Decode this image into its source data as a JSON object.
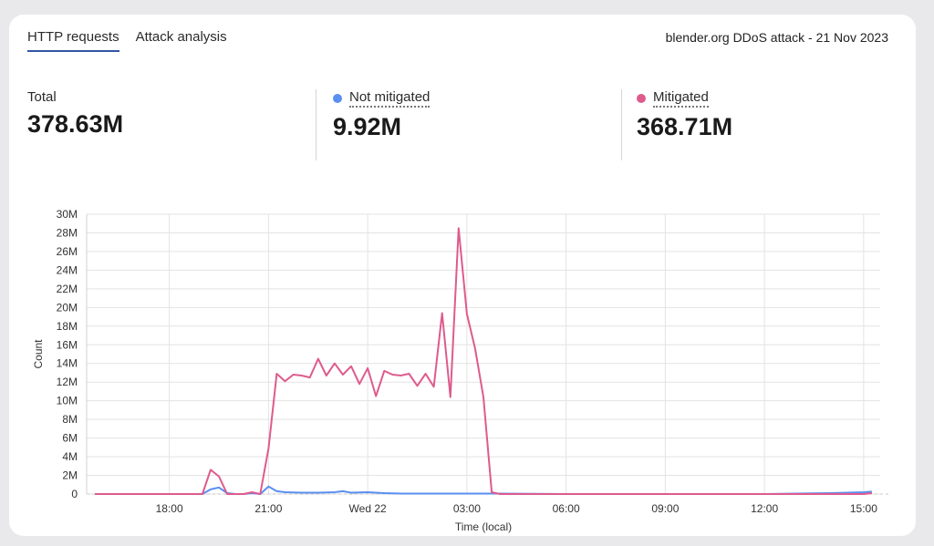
{
  "tabs": [
    {
      "label": "HTTP requests",
      "active": true
    },
    {
      "label": "Attack analysis",
      "active": false
    }
  ],
  "header": {
    "title": "blender.org DDoS attack - 21 Nov 2023"
  },
  "stats": {
    "total": {
      "label": "Total",
      "value": "378.63M"
    },
    "not_mitigated": {
      "label": "Not mitigated",
      "value": "9.92M",
      "color": "#5b8ff0"
    },
    "mitigated": {
      "label": "Mitigated",
      "value": "368.71M",
      "color": "#de5b8d"
    }
  },
  "chart_data": {
    "type": "line",
    "xlabel": "Time (local)",
    "ylabel": "Count",
    "ylim": [
      0,
      30
    ],
    "yticks": [
      0,
      2,
      4,
      6,
      8,
      10,
      12,
      14,
      16,
      18,
      20,
      22,
      24,
      26,
      28,
      30
    ],
    "ytick_labels": [
      "0",
      "2M",
      "4M",
      "6M",
      "8M",
      "10M",
      "12M",
      "14M",
      "16M",
      "18M",
      "20M",
      "22M",
      "24M",
      "26M",
      "28M",
      "30M"
    ],
    "x_unit": "hours",
    "xlim": [
      15.5,
      39.5
    ],
    "xticks": [
      18,
      21,
      24,
      27,
      30,
      33,
      36,
      39
    ],
    "xtick_labels": [
      "18:00",
      "21:00",
      "Wed 22",
      "03:00",
      "06:00",
      "09:00",
      "12:00",
      "15:00"
    ],
    "grid": true,
    "series": [
      {
        "name": "Mitigated",
        "color": "#de5b8d",
        "x": [
          15.75,
          16.25,
          17,
          18,
          18.5,
          19,
          19.25,
          19.5,
          19.75,
          20,
          20.25,
          20.5,
          20.75,
          21,
          21.25,
          21.5,
          21.75,
          22,
          22.25,
          22.5,
          22.75,
          23,
          23.25,
          23.5,
          23.75,
          24,
          24.25,
          24.5,
          24.75,
          25,
          25.25,
          25.5,
          25.75,
          26,
          26.25,
          26.5,
          26.75,
          27,
          27.25,
          27.5,
          27.75,
          28,
          28.5,
          30,
          33,
          36,
          39,
          39.25
        ],
        "values": [
          0,
          0,
          0,
          0,
          0,
          0,
          2.6,
          1.9,
          0,
          0,
          0,
          0.2,
          0,
          4.9,
          12.9,
          12.1,
          12.8,
          12.7,
          12.5,
          14.5,
          12.7,
          14.0,
          12.8,
          13.7,
          11.8,
          13.5,
          10.5,
          13.2,
          12.8,
          12.7,
          12.9,
          11.6,
          12.9,
          11.5,
          19.4,
          10.4,
          28.5,
          19.3,
          15.6,
          10.4,
          0.2,
          0,
          0,
          0,
          0,
          0,
          0,
          0.1
        ]
      },
      {
        "name": "Not mitigated",
        "color": "#5b8ff0",
        "x": [
          15.75,
          17,
          18,
          18.75,
          19,
          19.25,
          19.5,
          19.75,
          20,
          20.25,
          20.5,
          20.75,
          21,
          21.25,
          21.5,
          22,
          22.5,
          23,
          23.25,
          23.5,
          24,
          24.5,
          25,
          26,
          27,
          28,
          30,
          33,
          36,
          38,
          39,
          39.25
        ],
        "values": [
          0,
          0,
          0,
          0,
          0,
          0.5,
          0.7,
          0.1,
          0,
          0,
          0.1,
          0,
          0.8,
          0.3,
          0.2,
          0.15,
          0.15,
          0.2,
          0.3,
          0.15,
          0.2,
          0.1,
          0.05,
          0.05,
          0.05,
          0.05,
          0,
          0,
          0,
          0.1,
          0.2,
          0.25
        ]
      }
    ]
  }
}
